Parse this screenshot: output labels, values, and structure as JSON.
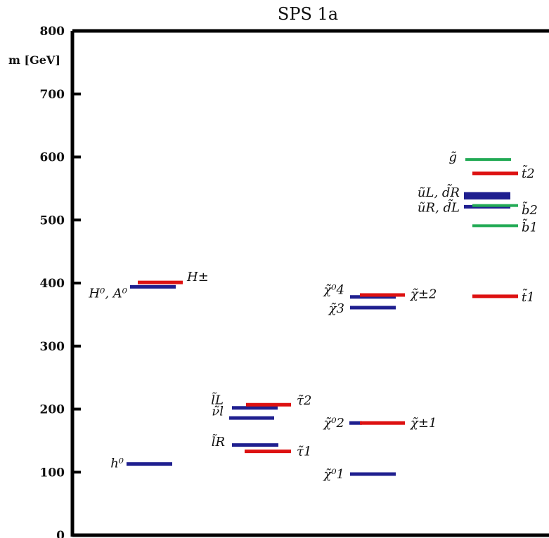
{
  "chart_data": {
    "type": "spectrum",
    "title": "SPS 1a",
    "ylabel": "m [GeV]",
    "ylim": [
      0,
      800
    ],
    "yticks": [
      0,
      100,
      200,
      300,
      400,
      500,
      600,
      700,
      800
    ],
    "colors": {
      "blue": "#1f1f8f",
      "red": "#dd1111",
      "green": "#22aa55"
    },
    "levels": [
      {
        "name": "h0",
        "mass": 113,
        "color": "blue"
      },
      {
        "name": "H0",
        "mass": 394,
        "color": "blue"
      },
      {
        "name": "A0",
        "mass": 394,
        "color": "blue"
      },
      {
        "name": "H±",
        "mass": 401,
        "color": "red"
      },
      {
        "name": "l̃_L",
        "mass": 202,
        "color": "blue"
      },
      {
        "name": "ν̃_l",
        "mass": 186,
        "color": "blue"
      },
      {
        "name": "τ̃_2",
        "mass": 207,
        "color": "red"
      },
      {
        "name": "l̃_R",
        "mass": 143,
        "color": "blue"
      },
      {
        "name": "τ̃_1",
        "mass": 133,
        "color": "red"
      },
      {
        "name": "χ̃_1^0",
        "mass": 97,
        "color": "blue"
      },
      {
        "name": "χ̃_2^0",
        "mass": 178,
        "color": "blue"
      },
      {
        "name": "χ̃_1^±",
        "mass": 178,
        "color": "red"
      },
      {
        "name": "χ̃_3^0",
        "mass": 361,
        "color": "blue"
      },
      {
        "name": "χ̃_4^0",
        "mass": 378,
        "color": "blue"
      },
      {
        "name": "χ̃_2^±",
        "mass": 381,
        "color": "red"
      },
      {
        "name": "g̃",
        "mass": 596,
        "color": "green"
      },
      {
        "name": "t̃_2",
        "mass": 574,
        "color": "red"
      },
      {
        "name": "ũ_L",
        "mass": 541,
        "color": "blue"
      },
      {
        "name": "d̃_R",
        "mass": 536,
        "color": "blue"
      },
      {
        "name": "ũ_R",
        "mass": 521,
        "color": "blue"
      },
      {
        "name": "d̃_L",
        "mass": 521,
        "color": "blue"
      },
      {
        "name": "b̃_2",
        "mass": 523,
        "color": "green"
      },
      {
        "name": "b̃_1",
        "mass": 491,
        "color": "green"
      },
      {
        "name": "t̃_1",
        "mass": 379,
        "color": "red"
      }
    ]
  }
}
